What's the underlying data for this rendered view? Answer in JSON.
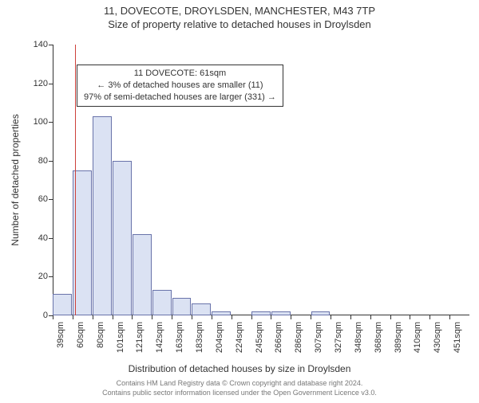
{
  "header": {
    "title": "11, DOVECOTE, DROYLSDEN, MANCHESTER, M43 7TP",
    "subtitle": "Size of property relative to detached houses in Droylsden"
  },
  "chart": {
    "type": "histogram",
    "ylabel": "Number of detached properties",
    "xlabel": "Distribution of detached houses by size in Droylsden",
    "ylim": [
      0,
      140
    ],
    "ytick_step": 20,
    "yticks": [
      0,
      20,
      40,
      60,
      80,
      100,
      120,
      140
    ],
    "xticks": [
      "39sqm",
      "60sqm",
      "80sqm",
      "101sqm",
      "121sqm",
      "142sqm",
      "163sqm",
      "183sqm",
      "204sqm",
      "224sqm",
      "245sqm",
      "266sqm",
      "286sqm",
      "307sqm",
      "327sqm",
      "348sqm",
      "368sqm",
      "389sqm",
      "410sqm",
      "430sqm",
      "451sqm"
    ],
    "bar_color": "#dbe2f3",
    "bar_border": "#6973aa",
    "background_color": "#ffffff",
    "axis_color": "#333333",
    "bars": [
      11,
      75,
      103,
      80,
      42,
      13,
      9,
      6,
      2,
      0,
      2,
      2,
      0,
      2,
      0,
      0,
      0,
      0,
      0,
      0,
      0
    ],
    "marker_value": 61,
    "marker_color": "#cd403a",
    "x_range": [
      39,
      451
    ]
  },
  "annotation": {
    "line1": "11 DOVECOTE: 61sqm",
    "line2": "← 3% of detached houses are smaller (11)",
    "line3": "97% of semi-detached houses are larger (331) →",
    "border_color": "#333333"
  },
  "footer": {
    "line1": "Contains HM Land Registry data © Crown copyright and database right 2024.",
    "line2": "Contains public sector information licensed under the Open Government Licence v3.0."
  }
}
